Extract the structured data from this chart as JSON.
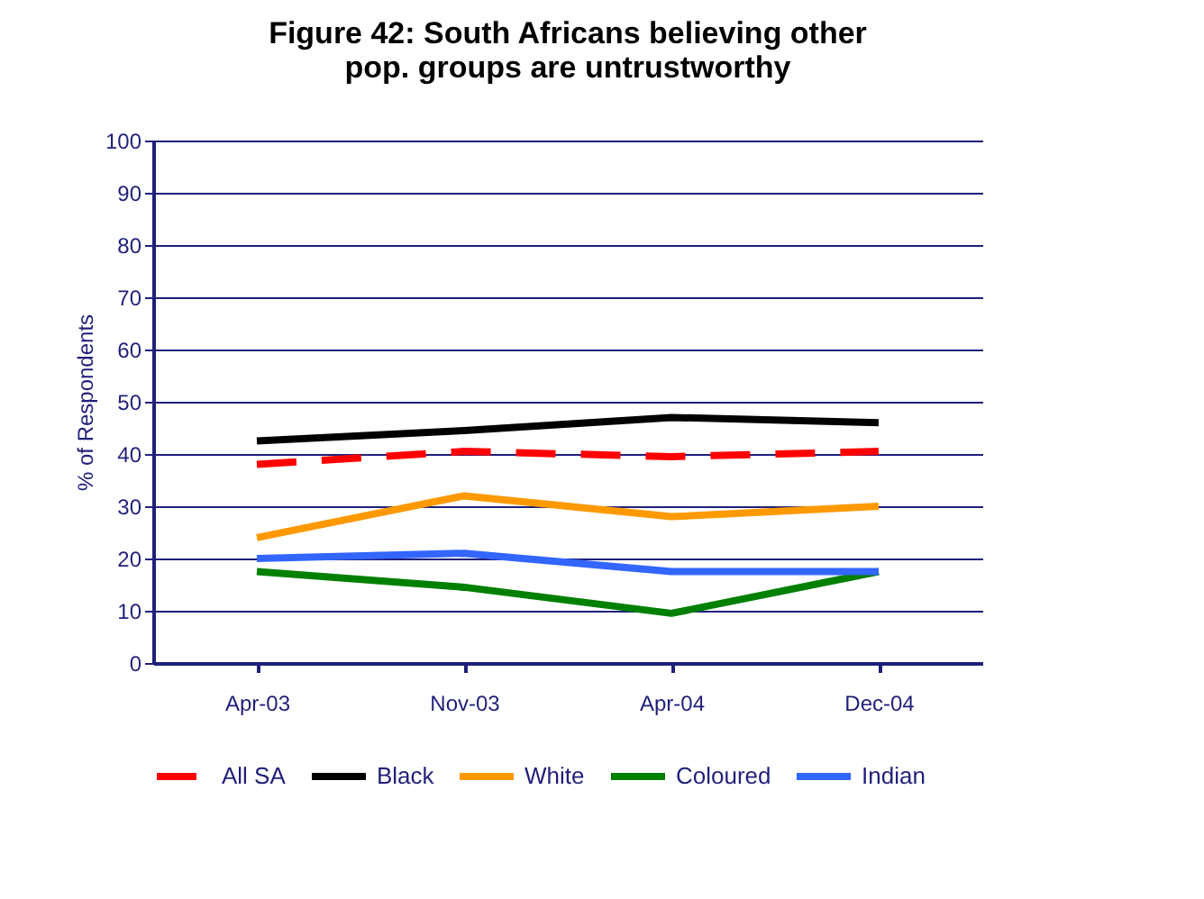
{
  "chart_data": {
    "type": "line",
    "title": "Figure 42: South Africans believing other pop. groups are untrustworthy",
    "ylabel": "% of Respondents",
    "categories": [
      "Apr-03",
      "Nov-03",
      "Apr-04",
      "Dec-04"
    ],
    "series": [
      {
        "name": "All SA",
        "color": "#ff0000",
        "line_style": "dashed",
        "values": [
          38,
          40.5,
          39.5,
          40.5
        ]
      },
      {
        "name": "Black",
        "color": "#000000",
        "values": [
          42.5,
          44.5,
          47,
          46
        ]
      },
      {
        "name": "White",
        "color": "#ff9900",
        "values": [
          24,
          32,
          28,
          30
        ]
      },
      {
        "name": "Coloured",
        "color": "#008000",
        "values": [
          17.5,
          14.5,
          9.5,
          17.5
        ]
      },
      {
        "name": "Indian",
        "color": "#3366ff",
        "values": [
          20,
          21,
          17.5,
          17.5
        ]
      }
    ],
    "ylim": [
      0,
      100
    ],
    "yticks": [
      0,
      10,
      20,
      30,
      40,
      50,
      60,
      70,
      80,
      90,
      100
    ],
    "grid": "y",
    "legend": "bottom",
    "marker": "none",
    "line_style": "solid"
  }
}
